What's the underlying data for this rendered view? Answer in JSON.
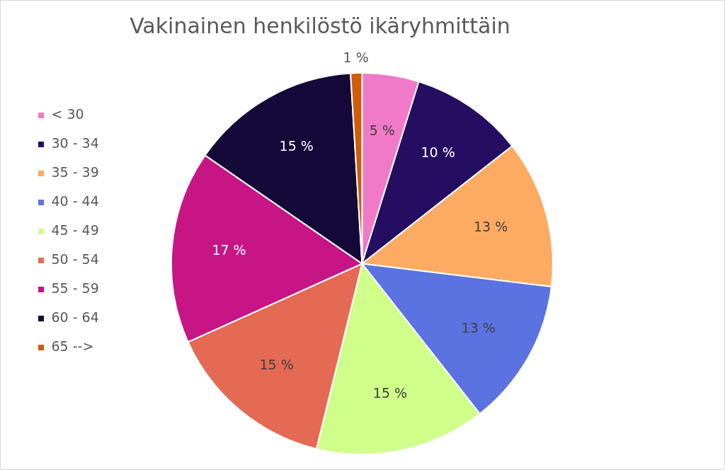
{
  "chart_data": {
    "type": "pie",
    "title": "Vakinainen henkilöstö ikäryhmittäin",
    "categories": [
      "< 30",
      "30 - 34",
      "35 - 39",
      "40 - 44",
      "45 - 49",
      "50 - 54",
      "55 - 59",
      "60 - 64",
      "65 -->"
    ],
    "values": [
      5,
      10,
      13,
      13,
      15,
      15,
      17,
      15,
      1
    ],
    "value_labels": [
      "5 %",
      "10 %",
      "13 %",
      "13 %",
      "15 %",
      "15 %",
      "17 %",
      "15 %",
      "1 %"
    ],
    "colors": [
      "#f17ac8",
      "#250e62",
      "#fdab63",
      "#5b73e0",
      "#d0fe8a",
      "#e46a54",
      "#c71585",
      "#150939",
      "#d05b09"
    ],
    "legend": "left"
  }
}
